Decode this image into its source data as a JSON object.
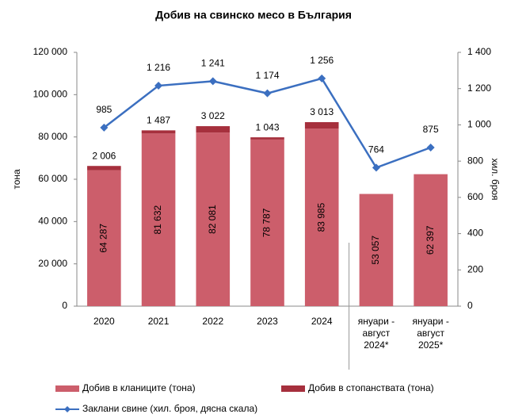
{
  "chart_data": {
    "type": "bar",
    "title": "Добив на свинско месо в България",
    "y_label": "тона",
    "y2_label": "хил. броя",
    "categories": [
      "2020",
      "2021",
      "2022",
      "2023",
      "2024",
      "януари -\nавгуст\n2024*",
      "януари -\nавгуст\n2025*"
    ],
    "stacked": true,
    "series": [
      {
        "name": "Добив в кланиците (тона)",
        "type": "bar",
        "color": "#cc5e6b",
        "values": [
          64287,
          81632,
          82081,
          78787,
          83985,
          53057,
          62397
        ],
        "value_labels": [
          "64 287",
          "81 632",
          "82 081",
          "78 787",
          "83 985",
          "53 057",
          "62 397"
        ]
      },
      {
        "name": "Добив в стопанствата (тона)",
        "type": "bar",
        "color": "#a6303d",
        "values": [
          2006,
          1487,
          3022,
          1043,
          3013,
          null,
          null
        ],
        "value_labels": [
          "2 006",
          "1 487",
          "3 022",
          "1 043",
          "3 013",
          null,
          null
        ]
      },
      {
        "name": "Заклани свине (хил. броя, дясна скала)",
        "type": "line",
        "axis": "y2",
        "color": "#3b6fc0",
        "values": [
          985,
          1216,
          1241,
          1174,
          1256,
          764,
          875
        ],
        "value_labels": [
          "985",
          "1 216",
          "1 241",
          "1 174",
          "1 256",
          "764",
          "875"
        ]
      }
    ],
    "ylim": [
      0,
      120000
    ],
    "yticks": [
      0,
      {
        "value": 20000,
        "label": "20 000"
      },
      {
        "value": 40000,
        "label": "40 000"
      },
      {
        "value": 60000,
        "label": "60 000"
      },
      {
        "value": 80000,
        "label": "80 000"
      },
      {
        "value": 100000,
        "label": "100 000"
      },
      {
        "value": 120000,
        "label": "120 000"
      }
    ],
    "y2lim": [
      0,
      1400
    ],
    "y2ticks": [
      0,
      200,
      400,
      600,
      800,
      {
        "value": 1000,
        "label": "1 000"
      },
      {
        "value": 1200,
        "label": "1 200"
      },
      {
        "value": 1400,
        "label": "1 400"
      }
    ],
    "grid": false,
    "legend": "bottom"
  }
}
